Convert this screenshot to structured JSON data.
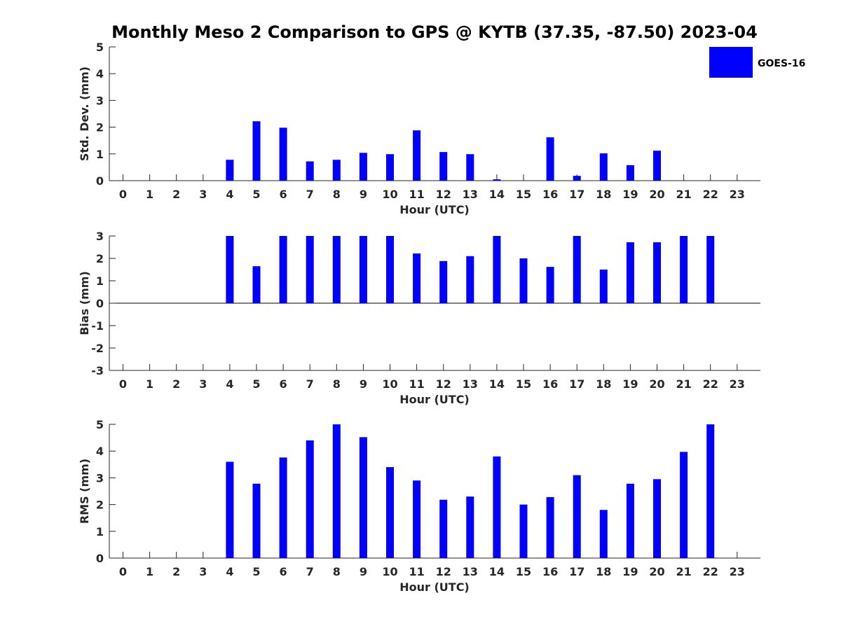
{
  "title": "Monthly Meso 2 Comparison to GPS @ KYTB (37.35, -87.50) 2023-04",
  "legend": {
    "label": "GOES-16",
    "color": "#0000ff"
  },
  "chart_data": [
    {
      "type": "bar",
      "ylabel": "Std. Dev. (mm)",
      "xlabel": "Hour (UTC)",
      "ylim": [
        0,
        5
      ],
      "yticks": [
        "0",
        "1",
        "2",
        "3",
        "4",
        "5"
      ],
      "categories": [
        "0",
        "1",
        "2",
        "3",
        "4",
        "5",
        "6",
        "7",
        "8",
        "9",
        "10",
        "11",
        "12",
        "13",
        "14",
        "15",
        "16",
        "17",
        "18",
        "19",
        "20",
        "21",
        "22",
        "23"
      ],
      "series": [
        {
          "name": "GOES-16",
          "values": [
            null,
            null,
            null,
            null,
            0.78,
            2.22,
            1.98,
            0.72,
            0.78,
            1.04,
            0.99,
            1.88,
            1.07,
            0.99,
            0.05,
            null,
            1.62,
            0.18,
            1.02,
            0.58,
            1.12,
            null,
            null,
            null
          ]
        }
      ],
      "grid": false,
      "legend_position": "top-right"
    },
    {
      "type": "bar",
      "ylabel": "Bias (mm)",
      "xlabel": "Hour (UTC)",
      "ylim": [
        -3,
        3
      ],
      "yticks": [
        "-3",
        "-2",
        "-1",
        "0",
        "1",
        "2",
        "3"
      ],
      "categories": [
        "0",
        "1",
        "2",
        "3",
        "4",
        "5",
        "6",
        "7",
        "8",
        "9",
        "10",
        "11",
        "12",
        "13",
        "14",
        "15",
        "16",
        "17",
        "18",
        "19",
        "20",
        "21",
        "22",
        "23"
      ],
      "series": [
        {
          "name": "GOES-16",
          "values": [
            null,
            null,
            null,
            null,
            3.0,
            1.65,
            3.0,
            3.0,
            3.0,
            3.0,
            3.0,
            2.22,
            1.88,
            2.1,
            3.0,
            2.0,
            1.62,
            3.0,
            1.5,
            2.72,
            2.72,
            3.0,
            3.0,
            null
          ]
        }
      ],
      "grid": false
    },
    {
      "type": "bar",
      "ylabel": "RMS (mm)",
      "xlabel": "Hour (UTC)",
      "ylim": [
        0,
        5
      ],
      "yticks": [
        "0",
        "1",
        "2",
        "3",
        "4",
        "5"
      ],
      "categories": [
        "0",
        "1",
        "2",
        "3",
        "4",
        "5",
        "6",
        "7",
        "8",
        "9",
        "10",
        "11",
        "12",
        "13",
        "14",
        "15",
        "16",
        "17",
        "18",
        "19",
        "20",
        "21",
        "22",
        "23"
      ],
      "series": [
        {
          "name": "GOES-16",
          "values": [
            null,
            null,
            null,
            null,
            3.6,
            2.78,
            3.76,
            4.4,
            5.0,
            4.52,
            3.4,
            2.9,
            2.18,
            2.3,
            3.8,
            2.0,
            2.28,
            3.1,
            1.8,
            2.78,
            2.95,
            3.97,
            5.0,
            null
          ]
        }
      ],
      "grid": false
    }
  ]
}
